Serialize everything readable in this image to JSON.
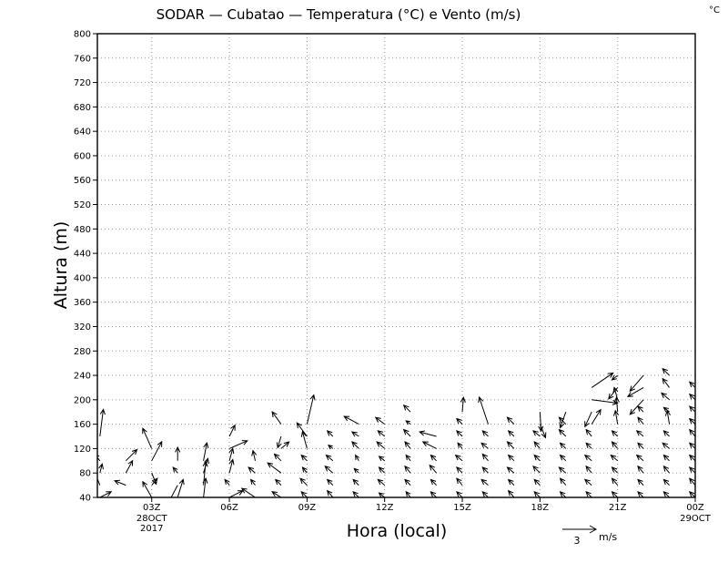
{
  "chart_data": {
    "type": "vector_field",
    "title": "SODAR — Cubatao — Temperatura (°C) e Vento (m/s)",
    "unit_label": "°C",
    "xlabel": "Hora (local)",
    "ylabel": "Altura (m)",
    "x_ticks": [
      {
        "hour": 3,
        "label": "03Z",
        "sub": [
          "28OCT",
          "2017"
        ]
      },
      {
        "hour": 6,
        "label": "06Z",
        "sub": []
      },
      {
        "hour": 9,
        "label": "09Z",
        "sub": []
      },
      {
        "hour": 12,
        "label": "12Z",
        "sub": []
      },
      {
        "hour": 15,
        "label": "15Z",
        "sub": []
      },
      {
        "hour": 18,
        "label": "18Z",
        "sub": []
      },
      {
        "hour": 21,
        "label": "21Z",
        "sub": []
      },
      {
        "hour": 24,
        "label": "00Z",
        "sub": [
          "29OCT"
        ]
      }
    ],
    "xlim": [
      0.9,
      24
    ],
    "ylim": [
      40,
      800
    ],
    "y_ticks": [
      40,
      80,
      120,
      160,
      200,
      240,
      280,
      320,
      360,
      400,
      440,
      480,
      520,
      560,
      600,
      640,
      680,
      720,
      760,
      800
    ],
    "grid": true,
    "vector_scale": {
      "value": 3,
      "unit": "m/s"
    },
    "heights_m": [
      40,
      60,
      80,
      100,
      120,
      140,
      160,
      180,
      200,
      220,
      240
    ],
    "time_step_h": 1,
    "wind": [
      {
        "hour": 1,
        "vectors": [
          [
            1.0,
            0.5
          ],
          [
            -0.6,
            1.5
          ],
          [
            0.2,
            0.8
          ],
          [
            -0.5,
            0.6
          ],
          [
            0.0,
            0.0
          ],
          [
            0.3,
            2.4
          ]
        ]
      },
      {
        "hour": 2,
        "vectors": [
          [
            1.5,
            -0.5
          ],
          [
            -1.0,
            0.4
          ],
          [
            0.6,
            1.1
          ],
          [
            1.0,
            1.0
          ]
        ]
      },
      {
        "hour": 3,
        "vectors": [
          [
            -0.8,
            1.4
          ],
          [
            0.5,
            0.6
          ],
          [
            0.4,
            -1.0
          ],
          [
            0.9,
            1.7
          ],
          [
            -0.8,
            1.8
          ]
        ]
      },
      {
        "hour": 4,
        "vectors": [
          [
            0.5,
            1.6
          ],
          [
            -0.9,
            -1.7
          ],
          [
            -0.4,
            0.5
          ],
          [
            0.0,
            1.2
          ]
        ]
      },
      {
        "hour": 5,
        "vectors": [
          [
            0.2,
            1.7
          ],
          [
            0.2,
            2.1
          ],
          [
            0.4,
            1.3
          ],
          [
            0.3,
            1.6
          ]
        ]
      },
      {
        "hour": 6,
        "vectors": [
          [
            1.2,
            0.6
          ],
          [
            -0.4,
            0.5
          ],
          [
            0.3,
            1.2
          ],
          [
            0.3,
            1.1
          ],
          [
            1.6,
            0.7
          ],
          [
            0.5,
            1.0
          ]
        ]
      },
      {
        "hour": 7,
        "vectors": [
          [
            -1.2,
            0.8
          ],
          [
            -0.4,
            0.5
          ],
          [
            -0.6,
            0.5
          ],
          [
            -0.2,
            0.9
          ]
        ]
      },
      {
        "hour": 8,
        "vectors": [
          [
            -0.8,
            0.5
          ],
          [
            -0.5,
            0.5
          ],
          [
            -1.2,
            0.9
          ],
          [
            -0.6,
            0.6
          ],
          [
            0.7,
            0.6
          ],
          [
            -0.3,
            -1.0
          ],
          [
            -0.8,
            1.1
          ]
        ]
      },
      {
        "hour": 9,
        "vectors": [
          [
            -0.5,
            0.5
          ],
          [
            -0.6,
            0.6
          ],
          [
            -0.4,
            0.5
          ],
          [
            -0.5,
            0.5
          ],
          [
            -0.4,
            1.5
          ],
          [
            -0.9,
            1.2
          ],
          [
            0.6,
            2.6
          ]
        ]
      },
      {
        "hour": 10,
        "vectors": [
          [
            -0.5,
            0.6
          ],
          [
            -0.5,
            0.5
          ],
          [
            -0.7,
            0.6
          ],
          [
            -0.6,
            0.5
          ],
          [
            -0.4,
            0.3
          ],
          [
            -0.5,
            0.5
          ]
        ]
      },
      {
        "hour": 11,
        "vectors": [
          [
            -0.5,
            0.5
          ],
          [
            -0.5,
            0.5
          ],
          [
            -0.4,
            0.4
          ],
          [
            -0.3,
            0.5
          ],
          [
            -0.6,
            0.6
          ],
          [
            -0.6,
            0.4
          ],
          [
            -1.3,
            0.7
          ]
        ]
      },
      {
        "hour": 12,
        "vectors": [
          [
            -0.5,
            0.4
          ],
          [
            -0.6,
            0.5
          ],
          [
            -0.5,
            0.5
          ],
          [
            -0.5,
            0.4
          ],
          [
            -0.7,
            0.6
          ],
          [
            -0.6,
            0.5
          ],
          [
            -0.8,
            0.6
          ]
        ]
      },
      {
        "hour": 13,
        "vectors": [
          [
            -0.4,
            0.5
          ],
          [
            -0.5,
            0.5
          ],
          [
            -0.5,
            0.6
          ],
          [
            -0.4,
            0.5
          ],
          [
            -0.5,
            0.6
          ],
          [
            -0.6,
            0.6
          ],
          [
            -0.4,
            0.3
          ],
          [
            -0.6,
            0.6
          ]
        ]
      },
      {
        "hour": 14,
        "vectors": [
          [
            -0.5,
            0.5
          ],
          [
            -0.5,
            0.5
          ],
          [
            -0.6,
            0.7
          ],
          [
            -0.5,
            0.5
          ],
          [
            -1.2,
            0.6
          ],
          [
            -1.5,
            0.4
          ]
        ]
      },
      {
        "hour": 15,
        "vectors": [
          [
            -0.5,
            0.5
          ],
          [
            -0.5,
            0.6
          ],
          [
            -0.5,
            0.5
          ],
          [
            -0.6,
            0.5
          ],
          [
            -0.4,
            0.5
          ],
          [
            -0.5,
            0.5
          ],
          [
            -0.5,
            0.5
          ],
          [
            0.1,
            1.3
          ]
        ]
      },
      {
        "hour": 16,
        "vectors": [
          [
            -0.5,
            0.5
          ],
          [
            -0.6,
            0.5
          ],
          [
            -0.5,
            0.5
          ],
          [
            -0.5,
            0.6
          ],
          [
            -0.6,
            0.5
          ],
          [
            -0.5,
            0.5
          ],
          [
            -0.8,
            2.4
          ]
        ]
      },
      {
        "hour": 17,
        "vectors": [
          [
            -0.5,
            0.6
          ],
          [
            -0.5,
            0.5
          ],
          [
            -0.6,
            0.5
          ],
          [
            -0.5,
            0.5
          ],
          [
            -0.6,
            0.6
          ],
          [
            -0.5,
            0.5
          ],
          [
            -0.6,
            0.6
          ]
        ]
      },
      {
        "hour": 18,
        "vectors": [
          [
            -0.5,
            0.5
          ],
          [
            -0.5,
            0.5
          ],
          [
            -0.6,
            0.6
          ],
          [
            -0.5,
            0.5
          ],
          [
            -0.5,
            0.6
          ],
          [
            -0.6,
            0.5
          ],
          [
            0.5,
            -1.2
          ],
          [
            0.1,
            -1.7
          ]
        ]
      },
      {
        "hour": 19,
        "vectors": [
          [
            -0.5,
            0.5
          ],
          [
            -0.5,
            0.6
          ],
          [
            -0.6,
            0.5
          ],
          [
            -0.5,
            0.5
          ],
          [
            -0.5,
            0.5
          ],
          [
            -0.6,
            0.6
          ],
          [
            -0.6,
            0.6
          ],
          [
            -0.5,
            -1.4
          ]
        ]
      },
      {
        "hour": 20,
        "vectors": [
          [
            -0.5,
            0.5
          ],
          [
            -0.6,
            0.5
          ],
          [
            -0.5,
            0.6
          ],
          [
            -0.6,
            0.5
          ],
          [
            -0.5,
            0.5
          ],
          [
            -0.5,
            0.6
          ],
          [
            0.8,
            1.3
          ],
          [
            -0.6,
            -1.3
          ],
          [
            2.3,
            -0.3
          ],
          [
            1.9,
            1.3
          ]
        ]
      },
      {
        "hour": 21,
        "vectors": [
          [
            -0.5,
            0.5
          ],
          [
            -0.5,
            0.6
          ],
          [
            -0.5,
            0.5
          ],
          [
            -0.6,
            0.5
          ],
          [
            -0.5,
            0.6
          ],
          [
            -0.5,
            0.5
          ],
          [
            -0.2,
            1.2
          ],
          [
            -0.1,
            1.3
          ],
          [
            -0.3,
            1.1
          ],
          [
            -0.8,
            -1.0
          ],
          [
            -0.5,
            -0.4
          ]
        ]
      },
      {
        "hour": 22,
        "vectors": [
          [
            -0.5,
            0.5
          ],
          [
            -0.5,
            0.5
          ],
          [
            -0.5,
            0.6
          ],
          [
            -0.6,
            0.5
          ],
          [
            -0.5,
            0.5
          ],
          [
            -0.6,
            0.5
          ],
          [
            -0.5,
            0.6
          ],
          [
            -0.5,
            0.5
          ],
          [
            -1.2,
            -1.3
          ],
          [
            -1.4,
            -0.8
          ],
          [
            -1.2,
            -1.4
          ]
        ]
      },
      {
        "hour": 23,
        "vectors": [
          [
            -0.5,
            0.5
          ],
          [
            -0.5,
            0.5
          ],
          [
            -0.5,
            0.6
          ],
          [
            -0.5,
            0.5
          ],
          [
            -0.6,
            0.5
          ],
          [
            -0.5,
            0.5
          ],
          [
            -0.2,
            1.2
          ],
          [
            -0.5,
            0.4
          ],
          [
            -0.7,
            0.6
          ],
          [
            -0.6,
            0.8
          ],
          [
            -0.6,
            0.6
          ]
        ]
      },
      {
        "hour": 24,
        "vectors": [
          [
            -0.5,
            0.5
          ],
          [
            -0.5,
            0.6
          ],
          [
            -0.5,
            0.5
          ],
          [
            -0.5,
            0.5
          ],
          [
            -0.5,
            0.5
          ],
          [
            -0.5,
            0.6
          ],
          [
            -0.5,
            0.5
          ],
          [
            -0.5,
            0.5
          ],
          [
            -0.5,
            0.5
          ],
          [
            -0.5,
            0.5
          ]
        ]
      }
    ]
  }
}
